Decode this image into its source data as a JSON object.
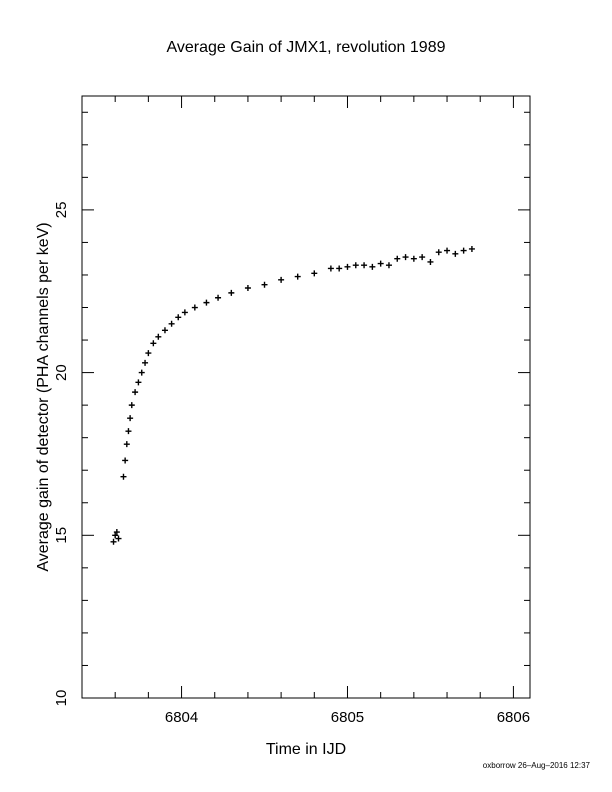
{
  "chart_data": {
    "type": "scatter",
    "title": "Average Gain of JMX1, revolution 1989",
    "xlabel": "Time in IJD",
    "ylabel": "Average gain of detector (PHA channels per keV)",
    "xlim": [
      6803.4,
      6806.1
    ],
    "ylim": [
      10,
      28.5
    ],
    "x_ticks": [
      6804,
      6805,
      6806
    ],
    "y_ticks": [
      10,
      15,
      20,
      25
    ],
    "x_minor_step": 0.2,
    "y_minor_step": 1,
    "grid": false,
    "marker": "plus",
    "color": "#000000",
    "series": [
      {
        "x": [
          6803.59,
          6803.6,
          6803.61,
          6803.62,
          6803.65,
          6803.66,
          6803.67,
          6803.68,
          6803.69,
          6803.7,
          6803.72,
          6803.74,
          6803.76,
          6803.78,
          6803.8,
          6803.83,
          6803.86,
          6803.9,
          6803.94,
          6803.98,
          6804.02,
          6804.08,
          6804.15,
          6804.22,
          6804.3,
          6804.4,
          6804.5,
          6804.6,
          6804.7,
          6804.8,
          6804.9,
          6804.95,
          6805.0,
          6805.05,
          6805.1,
          6805.15,
          6805.2,
          6805.25,
          6805.3,
          6805.35,
          6805.4,
          6805.45,
          6805.5,
          6805.55,
          6805.6,
          6805.65,
          6805.7,
          6805.75
        ],
        "y": [
          14.8,
          15.0,
          15.1,
          14.9,
          16.8,
          17.3,
          17.8,
          18.2,
          18.6,
          19.0,
          19.4,
          19.7,
          20.0,
          20.3,
          20.6,
          20.9,
          21.1,
          21.3,
          21.5,
          21.7,
          21.85,
          22.0,
          22.15,
          22.3,
          22.45,
          22.6,
          22.7,
          22.85,
          22.95,
          23.05,
          23.2,
          23.2,
          23.25,
          23.3,
          23.3,
          23.25,
          23.35,
          23.3,
          23.5,
          23.55,
          23.5,
          23.55,
          23.4,
          23.7,
          23.75,
          23.65,
          23.75,
          23.8
        ]
      }
    ]
  },
  "footer": "oxborrow 26–Aug–2016 12:37"
}
